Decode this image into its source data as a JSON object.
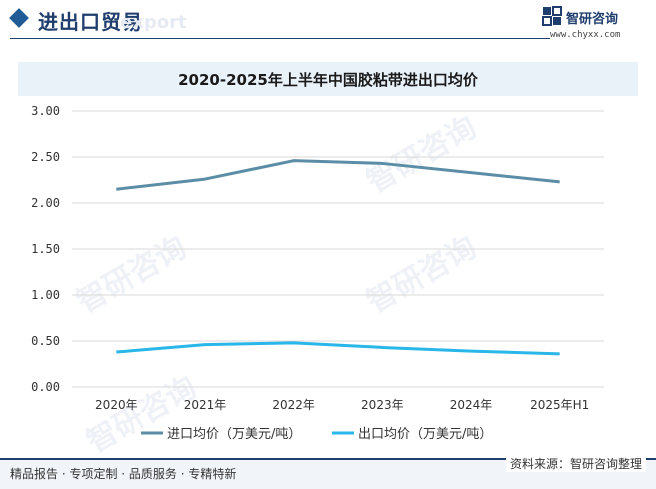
{
  "header": {
    "title": "进出口贸易",
    "watermark_text": "export",
    "brand_name": "智研咨询",
    "brand_url": "www.chyxx.com"
  },
  "footer": {
    "left_text": "精品报告 · 专项定制 · 品质服务 · 专精特新",
    "source_text": "资料来源：智研咨询整理"
  },
  "colors": {
    "import_series": "#5b8ea6",
    "export_series": "#29b6e8",
    "grid": "#d9d9d9",
    "brand": "#1f3e6e"
  },
  "chart_data": {
    "type": "line",
    "title": "2020-2025年上半年中国胶粘带进出口均价",
    "categories": [
      "2020年",
      "2021年",
      "2022年",
      "2023年",
      "2024年",
      "2025年H1"
    ],
    "yticks": [
      "0.00",
      "0.50",
      "1.00",
      "1.50",
      "2.00",
      "2.50",
      "3.00"
    ],
    "ylim": [
      0,
      3
    ],
    "grid": true,
    "legend_position": "bottom",
    "series": [
      {
        "name": "进口均价（万美元/吨）",
        "values": [
          2.15,
          2.26,
          2.46,
          2.43,
          2.33,
          2.23
        ]
      },
      {
        "name": "出口均价（万美元/吨）",
        "values": [
          0.38,
          0.46,
          0.48,
          0.43,
          0.39,
          0.36
        ]
      }
    ]
  }
}
